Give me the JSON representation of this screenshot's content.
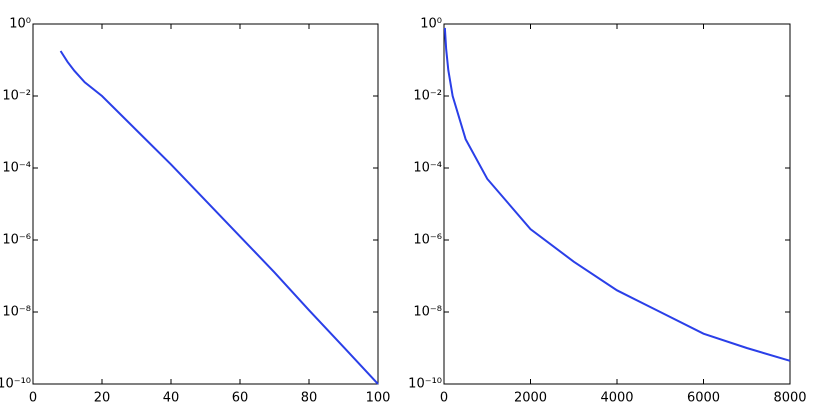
{
  "chart_data": [
    {
      "type": "line",
      "yscale": "log",
      "color": "#2a3fe8",
      "x": [
        8,
        10,
        12,
        15,
        20,
        30,
        40,
        50,
        60,
        70,
        80,
        90,
        100
      ],
      "values": [
        0.178,
        0.0891,
        0.0501,
        0.024,
        0.01,
        0.00112,
        0.000126,
        1.26e-05,
        1.26e-06,
        1.26e-07,
        1.12e-08,
        1.07e-09,
        1e-10
      ],
      "xlim": [
        0,
        100
      ],
      "xticks": [
        0,
        20,
        40,
        60,
        80,
        100
      ],
      "ylim": [
        1e-10,
        1
      ],
      "yticks": [
        {
          "value": 1e-10,
          "label": "10⁻¹⁰"
        },
        {
          "value": 1e-08,
          "label": "10⁻⁸"
        },
        {
          "value": 1e-06,
          "label": "10⁻⁶"
        },
        {
          "value": 0.0001,
          "label": "10⁻⁴"
        },
        {
          "value": 0.01,
          "label": "10⁻²"
        },
        {
          "value": 1,
          "label": "10⁰"
        }
      ]
    },
    {
      "type": "line",
      "yscale": "log",
      "color": "#2a3fe8",
      "x": [
        20,
        50,
        100,
        200,
        500,
        1000,
        2000,
        3000,
        4000,
        5000,
        6000,
        7000,
        8000
      ],
      "values": [
        0.78,
        0.2,
        0.052,
        0.01,
        0.00063,
        5e-05,
        2e-06,
        2.5e-07,
        4e-08,
        1e-08,
        2.5e-09,
        1e-09,
        4.4e-10
      ],
      "xlim": [
        0,
        8000
      ],
      "xticks": [
        0,
        2000,
        4000,
        6000,
        8000
      ],
      "ylim": [
        1e-10,
        1
      ],
      "yticks": [
        {
          "value": 1e-10,
          "label": "10⁻¹⁰"
        },
        {
          "value": 1e-08,
          "label": "10⁻⁸"
        },
        {
          "value": 1e-06,
          "label": "10⁻⁶"
        },
        {
          "value": 0.0001,
          "label": "10⁻⁴"
        },
        {
          "value": 0.01,
          "label": "10⁻²"
        },
        {
          "value": 1,
          "label": "10⁰"
        }
      ]
    }
  ]
}
